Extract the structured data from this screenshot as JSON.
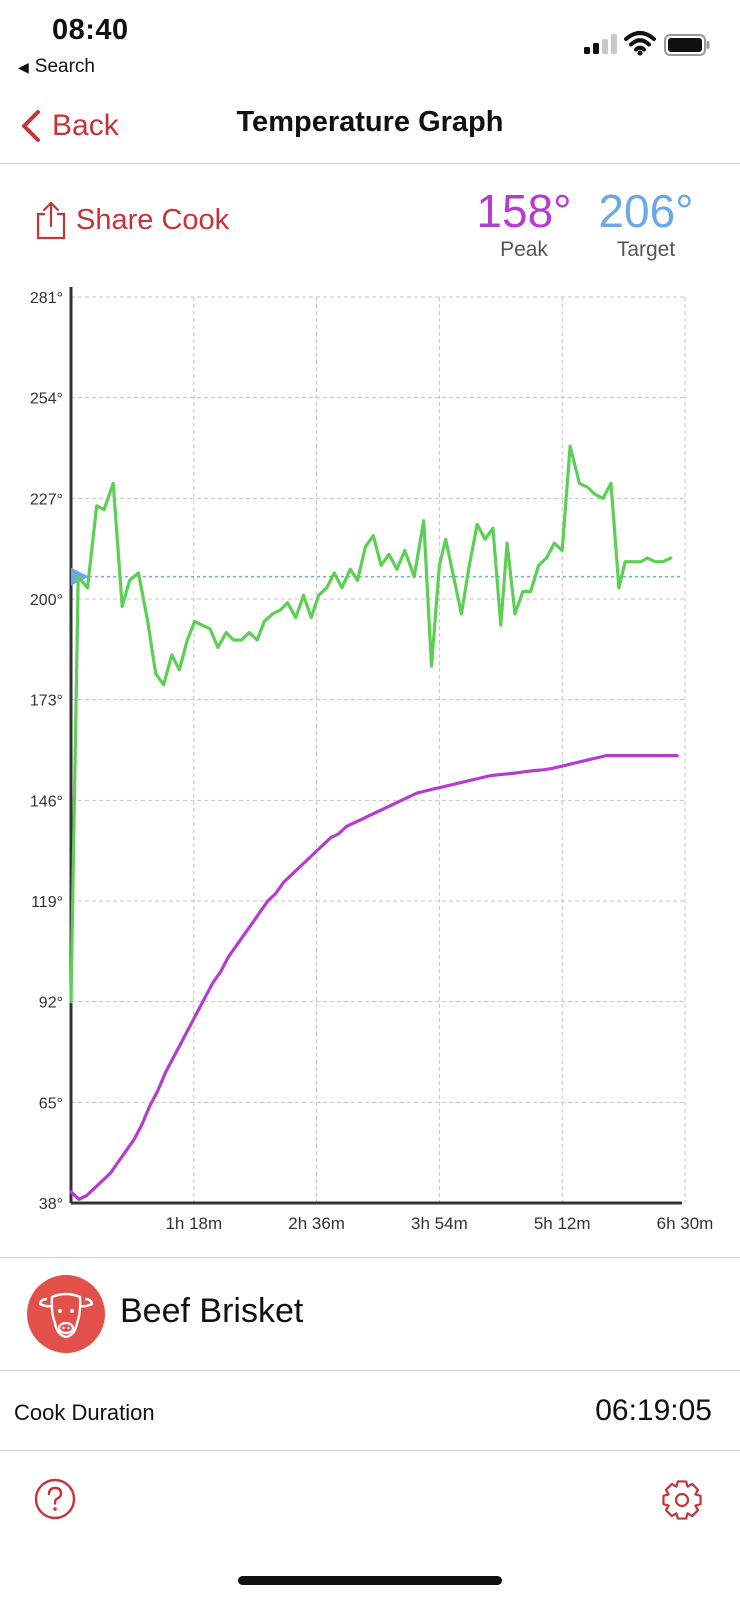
{
  "status": {
    "time": "08:40",
    "back_app": "Search"
  },
  "nav": {
    "back_label": "Back",
    "title": "Temperature Graph"
  },
  "share_label": "Share Cook",
  "stats": {
    "peak": {
      "value": "158°",
      "label": "Peak",
      "color": "#b43ccf"
    },
    "target": {
      "value": "206°",
      "label": "Target",
      "color": "#6aa9e4"
    }
  },
  "chart_data": {
    "type": "line",
    "title": "",
    "xlabel": "",
    "ylabel": "",
    "x_unit": "minutes",
    "xlim": [
      0,
      390
    ],
    "ylim": [
      38,
      281
    ],
    "y_ticks": [
      38,
      65,
      92,
      119,
      146,
      173,
      200,
      227,
      254,
      281
    ],
    "y_tick_labels": [
      "38°",
      "65°",
      "92°",
      "119°",
      "146°",
      "173°",
      "200°",
      "227°",
      "254°",
      "281°"
    ],
    "x_ticks": [
      78,
      156,
      234,
      312,
      390
    ],
    "x_tick_labels": [
      "1h 18m",
      "2h 36m",
      "3h 54m",
      "5h 12m",
      "6h 30m"
    ],
    "grid": true,
    "target_line": {
      "value": 206,
      "color": "#6aa9e4"
    },
    "series": [
      {
        "color": "#5ccf55",
        "x": [
          0,
          4.6,
          10.5,
          16.3,
          21,
          26.8,
          32.5,
          37.2,
          42.9,
          48.7,
          53.8,
          58.8,
          64,
          68.8,
          73.9,
          78.5,
          83.1,
          88.3,
          93.3,
          98.6,
          103.2,
          108.3,
          113.2,
          118.3,
          122.8,
          128,
          132.8,
          137.6,
          142.7,
          147.7,
          152.6,
          157.3,
          162.5,
          167.2,
          172.1,
          177.4,
          182,
          187,
          192,
          197,
          202,
          207,
          212,
          218,
          224,
          229,
          234,
          238,
          243,
          248,
          253,
          258,
          263,
          268,
          273,
          277,
          282,
          287,
          292,
          297,
          302,
          307,
          312,
          317,
          323,
          328,
          333,
          338,
          343,
          348,
          352,
          357,
          362,
          366,
          371,
          376,
          381
        ],
        "values": [
          92,
          206,
          203,
          225,
          224,
          231,
          198,
          205,
          207,
          194,
          180,
          177,
          185,
          181,
          189,
          194,
          193,
          192,
          187,
          191,
          189,
          189,
          191,
          189,
          194,
          196,
          197,
          199,
          195,
          201,
          195,
          201,
          203,
          207,
          203,
          208,
          205,
          214,
          217,
          209,
          212,
          208,
          213,
          206,
          221,
          182,
          209,
          216,
          206,
          196,
          209,
          220,
          216,
          219,
          193,
          215,
          196,
          202,
          202,
          209,
          211,
          215,
          213,
          241,
          231,
          230,
          228,
          227,
          231,
          203,
          210,
          210,
          210,
          211,
          210,
          210,
          211
        ]
      },
      {
        "color": "#b43ccf",
        "x": [
          0,
          5,
          10,
          15,
          20,
          25,
          30,
          35,
          40,
          45,
          50,
          55,
          60,
          65,
          70,
          75,
          80,
          85,
          90,
          95,
          100,
          105,
          110,
          115,
          120,
          125,
          130,
          135,
          140,
          145,
          150,
          155,
          160,
          165,
          170,
          175,
          180,
          185,
          190,
          195,
          200,
          205,
          210,
          215,
          220,
          225,
          230,
          235,
          240,
          245,
          250,
          255,
          260,
          265,
          270,
          275,
          280,
          285,
          290,
          295,
          300,
          305,
          310,
          315,
          320,
          325,
          330,
          335,
          340,
          345,
          350,
          355,
          360,
          365,
          370,
          375,
          380,
          385
        ],
        "values": [
          41,
          39,
          40,
          42,
          44,
          46,
          49,
          52,
          55,
          59,
          64,
          68,
          73,
          77,
          81,
          85,
          89,
          93,
          97,
          100,
          104,
          107,
          110,
          113,
          116,
          119,
          121,
          124,
          126,
          128,
          130,
          132,
          134,
          136,
          137,
          139,
          140,
          141,
          142,
          143,
          144,
          145,
          146,
          147,
          148,
          148.5,
          149,
          149.5,
          150,
          150.5,
          151,
          151.5,
          152,
          152.5,
          152.8,
          153,
          153.2,
          153.5,
          153.8,
          154,
          154.2,
          154.5,
          155,
          155.5,
          156,
          156.5,
          157,
          157.5,
          158,
          158,
          158,
          158,
          158,
          158,
          158,
          158,
          158,
          158
        ]
      }
    ]
  },
  "food": {
    "name": "Beef Brisket",
    "icon": "cow-icon",
    "icon_bg": "#e3504a"
  },
  "cook_duration": {
    "label": "Cook Duration",
    "value": "06:19:05"
  },
  "accent": "#c6343a"
}
